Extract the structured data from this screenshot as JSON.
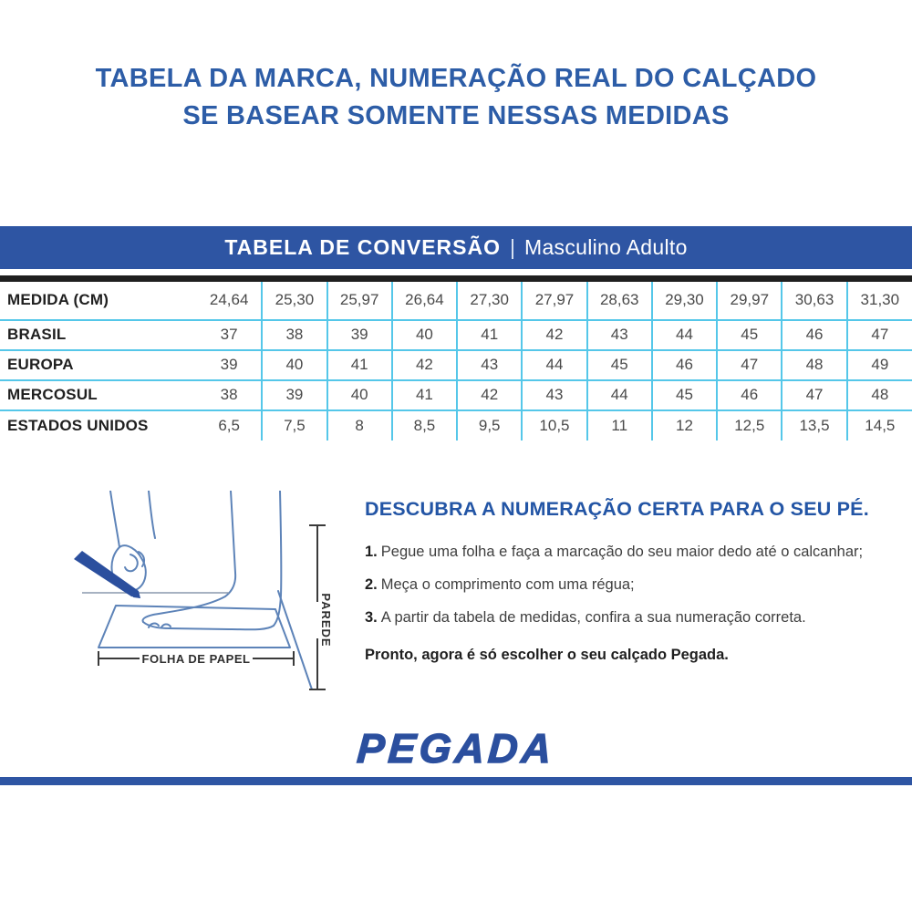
{
  "page": {
    "title_line1": "TABELA DA MARCA, NUMERAÇÃO REAL DO CALÇADO",
    "title_line2": "SE BASEAR SOMENTE NESSAS MEDIDAS"
  },
  "banner": {
    "title": "TABELA DE CONVERSÃO",
    "separator": "|",
    "subtitle": "Masculino Adulto"
  },
  "size_table": {
    "rows": [
      {
        "label": "MEDIDA (CM)",
        "values": [
          "24,64",
          "25,30",
          "25,97",
          "26,64",
          "27,30",
          "27,97",
          "28,63",
          "29,30",
          "29,97",
          "30,63",
          "31,30"
        ]
      },
      {
        "label": "BRASIL",
        "values": [
          "37",
          "38",
          "39",
          "40",
          "41",
          "42",
          "43",
          "44",
          "45",
          "46",
          "47"
        ]
      },
      {
        "label": "EUROPA",
        "values": [
          "39",
          "40",
          "41",
          "42",
          "43",
          "44",
          "45",
          "46",
          "47",
          "48",
          "49"
        ]
      },
      {
        "label": "MERCOSUL",
        "values": [
          "38",
          "39",
          "40",
          "41",
          "42",
          "43",
          "44",
          "45",
          "46",
          "47",
          "48"
        ]
      },
      {
        "label": "ESTADOS UNIDOS",
        "values": [
          "6,5",
          "7,5",
          "8",
          "8,5",
          "9,5",
          "10,5",
          "11",
          "12",
          "12,5",
          "13,5",
          "14,5"
        ]
      }
    ]
  },
  "instructions": {
    "heading": "DESCUBRA A NUMERAÇÃO CERTA PARA O SEU PÉ.",
    "steps": [
      {
        "num": "1.",
        "text": "Pegue uma folha e faça a marcação do seu maior dedo até o calcanhar;"
      },
      {
        "num": "2.",
        "text": "Meça o comprimento com uma régua;"
      },
      {
        "num": "3.",
        "text": "A partir da tabela de medidas, confira a sua numeração correta."
      }
    ],
    "closing": "Pronto, agora é só escolher o seu calçado Pegada."
  },
  "diagram": {
    "paper_label": "FOLHA DE PAPEL",
    "wall_label": "PAREDE"
  },
  "footer": {
    "logo": "PEGADA"
  },
  "colors": {
    "title_blue": "#2d5da7",
    "banner_bg": "#2e55a3",
    "brand_blue": "#2b4f9e",
    "divider_cyan": "#55c7e9",
    "table_border_black": "#1f1f1f",
    "illustration_stroke": "#5d83b8"
  }
}
